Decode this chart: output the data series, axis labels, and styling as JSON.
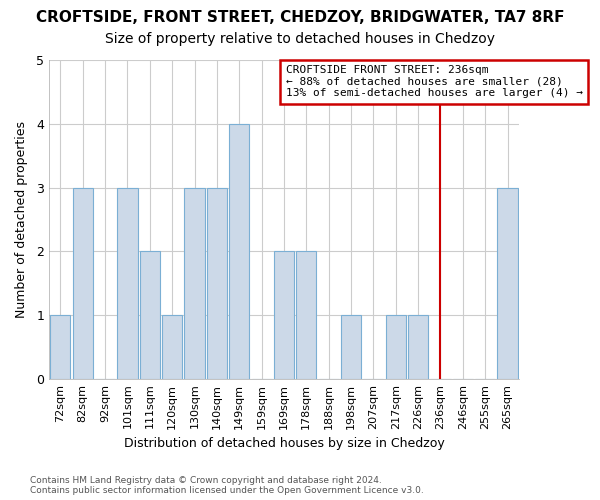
{
  "title": "CROFTSIDE, FRONT STREET, CHEDZOY, BRIDGWATER, TA7 8RF",
  "subtitle": "Size of property relative to detached houses in Chedzoy",
  "xlabel": "Distribution of detached houses by size in Chedzoy",
  "ylabel": "Number of detached properties",
  "categories": [
    "72sqm",
    "82sqm",
    "92sqm",
    "101sqm",
    "111sqm",
    "120sqm",
    "130sqm",
    "140sqm",
    "149sqm",
    "159sqm",
    "169sqm",
    "178sqm",
    "188sqm",
    "198sqm",
    "207sqm",
    "217sqm",
    "226sqm",
    "236sqm",
    "246sqm",
    "255sqm",
    "265sqm"
  ],
  "values": [
    1,
    3,
    0,
    3,
    2,
    1,
    3,
    3,
    4,
    0,
    2,
    2,
    0,
    1,
    0,
    1,
    1,
    0,
    0,
    0,
    3
  ],
  "bar_color": "#ccd9e8",
  "bar_edge_color": "#7bafd4",
  "marker_line_x": "236sqm",
  "annotation_line1": "CROFTSIDE FRONT STREET: 236sqm",
  "annotation_line2": "← 88% of detached houses are smaller (28)",
  "annotation_line3": "13% of semi-detached houses are larger (4) →",
  "marker_color": "#cc0000",
  "ylim": [
    0,
    5
  ],
  "yticks": [
    0,
    1,
    2,
    3,
    4,
    5
  ],
  "footer1": "Contains HM Land Registry data © Crown copyright and database right 2024.",
  "footer2": "Contains public sector information licensed under the Open Government Licence v3.0.",
  "bg_color": "#ffffff",
  "plot_bg_color": "#ffffff",
  "grid_color": "#cccccc",
  "title_fontsize": 11,
  "subtitle_fontsize": 10,
  "annotation_box_color": "#ffffff",
  "annotation_box_edge_color": "#cc0000"
}
